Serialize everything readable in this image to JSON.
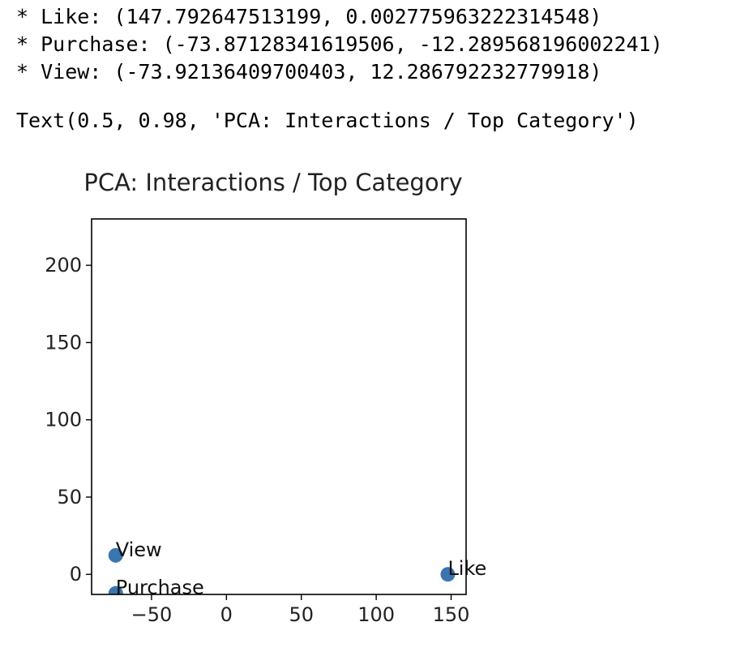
{
  "output": {
    "lines": [
      "* Like: (147.792647513199, 0.002775963222314548)",
      "* Purchase: (-73.87128341619506, -12.289568196002241)",
      "* View: (-73.92136409700403, 12.286792232779918)"
    ],
    "repr": "Text(0.5, 0.98, 'PCA: Interactions / Top Category')"
  },
  "chart_data": {
    "type": "scatter",
    "title": "PCA: Interactions / Top Category",
    "xlabel": "",
    "ylabel": "",
    "xlim": [
      -90,
      160
    ],
    "ylim": [
      -13,
      230
    ],
    "xticks": [
      -50,
      0,
      50,
      100,
      150
    ],
    "yticks": [
      0,
      50,
      100,
      150,
      200
    ],
    "xtick_labels": [
      "−50",
      "0",
      "50",
      "100",
      "150"
    ],
    "ytick_labels": [
      "0",
      "50",
      "100",
      "150",
      "200"
    ],
    "grid": false,
    "point_color": "#3a75b0",
    "points": [
      {
        "label": "Like",
        "x": 147.792647513199,
        "y": 0.002775963222314548
      },
      {
        "label": "Purchase",
        "x": -73.87128341619506,
        "y": -12.289568196002241
      },
      {
        "label": "View",
        "x": -73.92136409700403,
        "y": 12.286792232779918
      }
    ]
  }
}
